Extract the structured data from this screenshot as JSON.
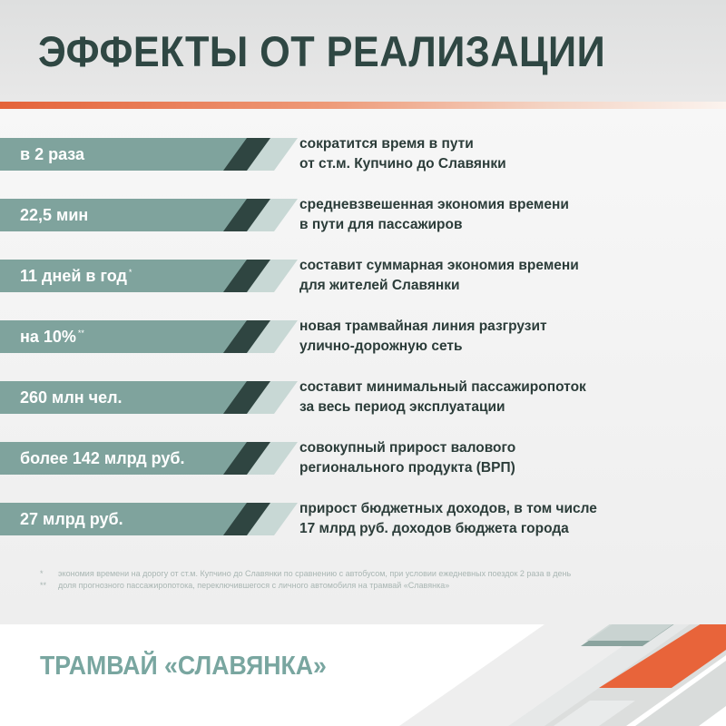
{
  "header": {
    "title": "ЭФФЕКТЫ ОТ РЕАЛИЗАЦИИ"
  },
  "effects": [
    {
      "value": "в 2 раза",
      "mark": "",
      "line1": "сократится время в пути",
      "line2": "от ст.м. Купчино до Славянки"
    },
    {
      "value": "22,5 мин",
      "mark": "",
      "line1": "средневзвешенная экономия времени",
      "line2": "в пути для пассажиров"
    },
    {
      "value": "11 дней в год",
      "mark": "*",
      "line1": "составит суммарная экономия времени",
      "line2": "для жителей Славянки"
    },
    {
      "value": "на 10%",
      "mark": "**",
      "line1": "новая трамвайная линия разгрузит",
      "line2": "улично-дорожную сеть"
    },
    {
      "value": "260 млн чел.",
      "mark": "",
      "line1": "составит минимальный пассажиропоток",
      "line2": "за весь период эксплуатации"
    },
    {
      "value": "более 142 млрд руб.",
      "mark": "",
      "line1": "совокупный прирост валового",
      "line2": "регионального продукта (ВРП)"
    },
    {
      "value": "27 млрд руб.",
      "mark": "",
      "line1": "прирост бюджетных доходов, в том числе",
      "line2": "17 млрд руб. доходов бюджета города"
    }
  ],
  "footnotes": [
    {
      "mark": "*",
      "text": "экономия времени на дорогу от ст.м. Купчино до Славянки по сравнению с автобусом, при условии ежедневных поездок 2 раза в день"
    },
    {
      "mark": "**",
      "text": "доля прогнозного пассажиропотока, переключившегося с личного автомобиля на трамвай «Славянка»"
    }
  ],
  "footer": {
    "brand": "ТРАМВАЙ «СЛАВЯНКА»"
  },
  "colors": {
    "title": "#2f4743",
    "bar_main": "#7fa39d",
    "bar_dark": "#2f4541",
    "bar_light": "#c8d8d5",
    "accent": "#e4633a",
    "brand": "#79a6a0"
  }
}
